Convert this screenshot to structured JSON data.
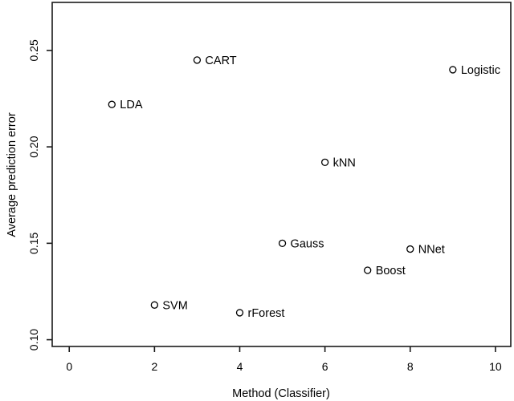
{
  "figure": {
    "background": "#ffffff",
    "line_color": "#1a1a1a",
    "text_color": "#000000",
    "marker": "open-circle"
  },
  "chart_data": {
    "type": "scatter",
    "title": "",
    "xlabel": "Method (Classifier)",
    "ylabel": "Average prediction error",
    "x_ticks": [
      0,
      2,
      4,
      6,
      8,
      10
    ],
    "x_tick_labels": [
      "0",
      "2",
      "4",
      "6",
      "8",
      "10"
    ],
    "y_ticks": [
      0.1,
      0.15,
      0.2,
      0.25
    ],
    "y_tick_labels": [
      "0.10",
      "0.15",
      "0.20",
      "0.25"
    ],
    "xlim": [
      -0.4,
      10.36
    ],
    "ylim": [
      0.0965,
      0.2749
    ],
    "grid": false,
    "legend": "none",
    "points": [
      {
        "label": "LDA",
        "x": 1,
        "y": 0.222
      },
      {
        "label": "CART",
        "x": 3,
        "y": 0.245
      },
      {
        "label": "Logistic",
        "x": 9,
        "y": 0.24
      },
      {
        "label": "kNN",
        "x": 6,
        "y": 0.192
      },
      {
        "label": "Gauss",
        "x": 5,
        "y": 0.15
      },
      {
        "label": "NNet",
        "x": 8,
        "y": 0.147
      },
      {
        "label": "Boost",
        "x": 7,
        "y": 0.136
      },
      {
        "label": "SVM",
        "x": 2,
        "y": 0.118
      },
      {
        "label": "rForest",
        "x": 4,
        "y": 0.114
      }
    ]
  }
}
